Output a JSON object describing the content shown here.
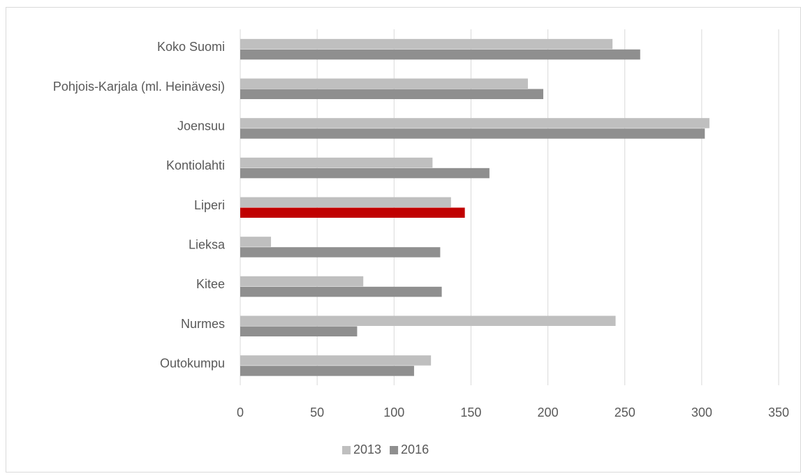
{
  "chart_data": {
    "type": "hbar",
    "categories": [
      "Koko Suomi",
      "Pohjois-Karjala (ml. Heinävesi)",
      "Joensuu",
      "Kontiolahti",
      "Liperi",
      "Lieksa",
      "Kitee",
      "Nurmes",
      "Outokumpu"
    ],
    "series": [
      {
        "name": "2013",
        "color": "#bfbfbf",
        "values": [
          242,
          187,
          305,
          125,
          137,
          20,
          80,
          244,
          124
        ]
      },
      {
        "name": "2016",
        "color": "#8f8f8f",
        "colors": [
          "#8f8f8f",
          "#8f8f8f",
          "#8f8f8f",
          "#8f8f8f",
          "#c00000",
          "#8f8f8f",
          "#8f8f8f",
          "#8f8f8f",
          "#8f8f8f"
        ],
        "values": [
          260,
          197,
          302,
          162,
          146,
          130,
          131,
          76,
          113
        ]
      }
    ],
    "xlim": [
      0,
      350
    ],
    "xticks": [
      0,
      50,
      100,
      150,
      200,
      250,
      300,
      350
    ],
    "grid": true,
    "legend": "bottom"
  }
}
